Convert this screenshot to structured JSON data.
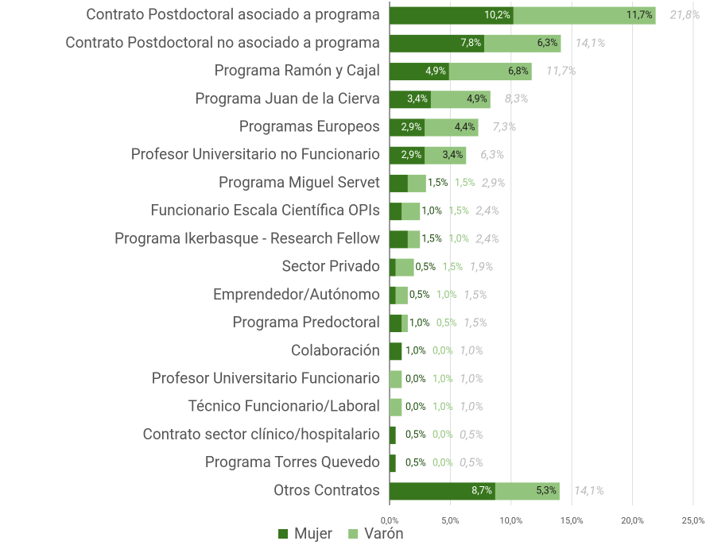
{
  "chart_data": {
    "type": "stacked-bar-horizontal",
    "categories": [
      "Contrato Postdoctoral asociado a programa",
      "Contrato Postdoctoral no asociado a programa",
      "Programa Ramón y Cajal",
      "Programa Juan de la Cierva",
      "Programas Europeos",
      "Profesor Universitario no Funcionario",
      "Programa Miguel Servet",
      "Funcionario Escala Científica OPIs",
      "Programa Ikerbasque - Research Fellow",
      "Sector Privado",
      "Emprendedor/Autónomo",
      "Programa Predoctoral",
      "Colaboración",
      "Profesor Universitario Funcionario",
      "Técnico Funcionario/Laboral",
      "Contrato sector clínico/hospitalario",
      "Programa Torres Quevedo",
      "Otros Contratos"
    ],
    "series": [
      {
        "name": "Mujer",
        "color": "#38761d",
        "values": [
          10.2,
          7.8,
          4.9,
          3.4,
          2.9,
          2.9,
          1.5,
          1.0,
          1.5,
          0.5,
          0.5,
          1.0,
          1.0,
          0.0,
          0.0,
          0.5,
          0.5,
          8.7
        ],
        "value_labels": [
          "10,2%",
          "7,8%",
          "4,9%",
          "3,4%",
          "2,9%",
          "2,9%",
          "1,5%",
          "1,0%",
          "1,5%",
          "0,5%",
          "0,5%",
          "1,0%",
          "1,0%",
          "0,0%",
          "0,0%",
          "0,5%",
          "0,5%",
          "8,7%"
        ]
      },
      {
        "name": "Varón",
        "color": "#93c47d",
        "values": [
          11.7,
          6.3,
          6.8,
          4.9,
          4.4,
          3.4,
          1.5,
          1.5,
          1.0,
          1.5,
          1.0,
          0.5,
          0.0,
          1.0,
          1.0,
          0.0,
          0.0,
          5.3
        ],
        "value_labels": [
          "11,7%",
          "6,3%",
          "6,8%",
          "4,9%",
          "4,4%",
          "3,4%",
          "1,5%",
          "1,5%",
          "1,0%",
          "1,5%",
          "1,0%",
          "0,5%",
          "0,0%",
          "1,0%",
          "1,0%",
          "0,0%",
          "0,0%",
          "5,3%"
        ]
      }
    ],
    "totals": [
      21.8,
      14.1,
      11.7,
      8.3,
      7.3,
      6.3,
      2.9,
      2.4,
      2.4,
      1.9,
      1.5,
      1.5,
      1.0,
      1.0,
      1.0,
      0.5,
      0.5,
      14.1
    ],
    "total_labels": [
      "21,8%",
      "14,1%",
      "11,7%",
      "8,3%",
      "7,3%",
      "6,3%",
      "2,9%",
      "2,4%",
      "2,4%",
      "1,9%",
      "1,5%",
      "1,5%",
      "1,0%",
      "1,0%",
      "1,0%",
      "0,5%",
      "0,5%",
      "14,1%"
    ],
    "xlim": [
      0,
      25
    ],
    "xticks": [
      {
        "value": 0,
        "label": "0,0%"
      },
      {
        "value": 5,
        "label": "5,0%"
      },
      {
        "value": 10,
        "label": "10,0%"
      },
      {
        "value": 15,
        "label": "15,0%"
      },
      {
        "value": 20,
        "label": "20,0%"
      },
      {
        "value": 25,
        "label": "25,0%"
      }
    ],
    "grid": true,
    "legend": "bottom"
  }
}
